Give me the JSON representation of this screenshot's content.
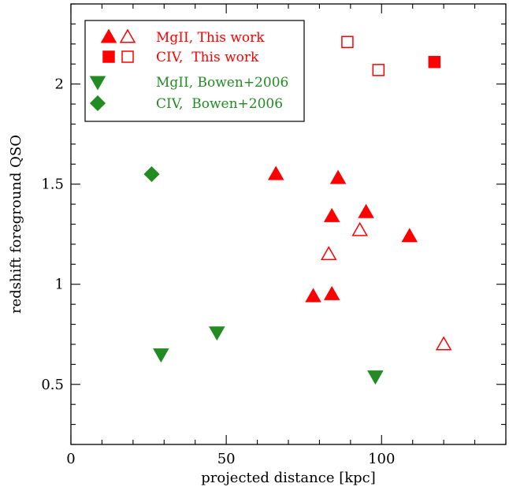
{
  "chart_data": {
    "type": "scatter",
    "xlabel": "projected distance [kpc]",
    "ylabel": "redshift foreground QSO",
    "xlim": [
      0,
      140
    ],
    "ylim": [
      0.2,
      2.4
    ],
    "x_major_ticks": [
      0,
      50,
      100
    ],
    "x_tick_labels": [
      "0",
      "50",
      "100"
    ],
    "x_minor_step": 10,
    "y_major_ticks": [
      0.5,
      1,
      1.5,
      2
    ],
    "y_tick_labels": [
      "0.5",
      "1",
      "1.5",
      "2"
    ],
    "y_minor_step": 0.1,
    "grid": false,
    "legend_position": "top-left",
    "colors": {
      "this_work": "#ff0000",
      "bowen": "#228b22"
    },
    "series": [
      {
        "legend_label": "MgII, This work",
        "color": "#ff0000",
        "marker": "triangle-up",
        "filled_points": [
          {
            "x": 66,
            "y": 1.55
          },
          {
            "x": 86,
            "y": 1.53
          },
          {
            "x": 84,
            "y": 1.34
          },
          {
            "x": 95,
            "y": 1.36
          },
          {
            "x": 109,
            "y": 1.24
          },
          {
            "x": 78,
            "y": 0.94
          },
          {
            "x": 84,
            "y": 0.95
          }
        ],
        "open_points": [
          {
            "x": 93,
            "y": 1.27
          },
          {
            "x": 83,
            "y": 1.15
          },
          {
            "x": 120,
            "y": 0.7
          }
        ]
      },
      {
        "legend_label": "CIV,  This work",
        "color": "#ff0000",
        "marker": "square",
        "filled_points": [
          {
            "x": 117,
            "y": 2.11
          }
        ],
        "open_points": [
          {
            "x": 89,
            "y": 2.21
          },
          {
            "x": 99,
            "y": 2.07
          }
        ]
      },
      {
        "legend_label": "MgII, Bowen+2006",
        "color": "#228b22",
        "marker": "triangle-down",
        "filled_points": [
          {
            "x": 29,
            "y": 0.65
          },
          {
            "x": 47,
            "y": 0.76
          },
          {
            "x": 98,
            "y": 0.54
          }
        ],
        "open_points": []
      },
      {
        "legend_label": "CIV,  Bowen+2006",
        "color": "#228b22",
        "marker": "diamond",
        "filled_points": [
          {
            "x": 26,
            "y": 1.55
          }
        ],
        "open_points": []
      }
    ]
  }
}
